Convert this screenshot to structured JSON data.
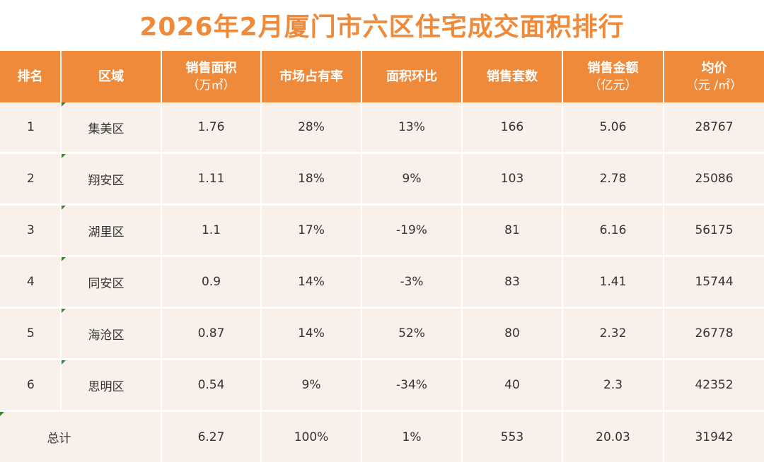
{
  "title": "2026年2月厦门市六区住宅成交面积排行",
  "header": {
    "rank": "排名",
    "district": "区域",
    "sale_area": "销售面积",
    "sale_area_unit": "（万㎡）",
    "market_share": "市场占有率",
    "area_mom": "面积环比",
    "units_sold": "销售套数",
    "sale_amount": "销售金额",
    "sale_amount_unit": "（亿元）",
    "avg_price": "均价",
    "avg_price_unit": "（元 /㎡）"
  },
  "rows": [
    {
      "rank": "1",
      "district": "集美区",
      "sale_area": "1.76",
      "market_share": "28%",
      "area_mom": "13%",
      "units_sold": "166",
      "sale_amount": "5.06",
      "avg_price": "28767"
    },
    {
      "rank": "2",
      "district": "翔安区",
      "sale_area": "1.11",
      "market_share": "18%",
      "area_mom": "9%",
      "units_sold": "103",
      "sale_amount": "2.78",
      "avg_price": "25086"
    },
    {
      "rank": "3",
      "district": "湖里区",
      "sale_area": "1.1",
      "market_share": "17%",
      "area_mom": "-19%",
      "units_sold": "81",
      "sale_amount": "6.16",
      "avg_price": "56175"
    },
    {
      "rank": "4",
      "district": "同安区",
      "sale_area": "0.9",
      "market_share": "14%",
      "area_mom": "-3%",
      "units_sold": "83",
      "sale_amount": "1.41",
      "avg_price": "15744"
    },
    {
      "rank": "5",
      "district": "海沧区",
      "sale_area": "0.87",
      "market_share": "14%",
      "area_mom": "52%",
      "units_sold": "80",
      "sale_amount": "2.32",
      "avg_price": "26778"
    },
    {
      "rank": "6",
      "district": "思明区",
      "sale_area": "0.54",
      "market_share": "9%",
      "area_mom": "-34%",
      "units_sold": "40",
      "sale_amount": "2.3",
      "avg_price": "42352"
    }
  ],
  "total": {
    "label": "总计",
    "sale_area": "6.27",
    "market_share": "100%",
    "area_mom": "1%",
    "units_sold": "553",
    "sale_amount": "20.03",
    "avg_price": "31942"
  },
  "colors": {
    "header_bg": "#ee8a3a",
    "title": "#ee8a3a",
    "row_bg": "#f9f0e9",
    "corner_mark": "#2e8b2e"
  }
}
